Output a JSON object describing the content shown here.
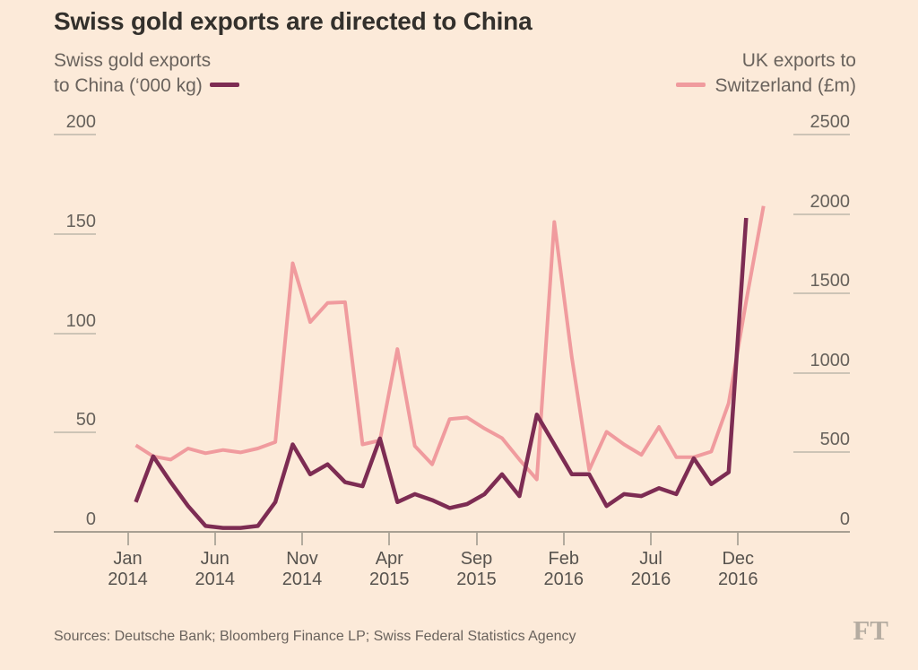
{
  "title": "Swiss gold exports are directed to China",
  "source_line": "Sources: Deutsche Bank; Bloomberg Finance LP; Swiss Federal Statistics Agency",
  "ft_logo": "FT",
  "colors": {
    "background": "#fcead9",
    "china_line": "#7d2c53",
    "uk_line": "#f09b9e",
    "title_text": "#33302c",
    "axis_text": "#66615b",
    "tick_line": "#cdc4b6",
    "baseline": "#a8a093"
  },
  "legend": {
    "left_line1": "Swiss gold exports",
    "left_line2": "to China (‘000 kg)",
    "right_line1": "UK exports to",
    "right_line2": "Switzerland (£m)"
  },
  "chart_data": {
    "type": "line",
    "title": "Swiss gold exports are directed to China",
    "x": [
      "Jan 2014",
      "Feb 2014",
      "Mar 2014",
      "Apr 2014",
      "May 2014",
      "Jun 2014",
      "Jul 2014",
      "Aug 2014",
      "Sep 2014",
      "Oct 2014",
      "Nov 2014",
      "Dec 2014",
      "Jan 2015",
      "Feb 2015",
      "Mar 2015",
      "Apr 2015",
      "May 2015",
      "Jun 2015",
      "Jul 2015",
      "Aug 2015",
      "Sep 2015",
      "Oct 2015",
      "Nov 2015",
      "Dec 2015",
      "Jan 2016",
      "Feb 2016",
      "Mar 2016",
      "Apr 2016",
      "May 2016",
      "Jun 2016",
      "Jul 2016",
      "Aug 2016",
      "Sep 2016",
      "Oct 2016",
      "Nov 2016",
      "Dec 2016",
      "Jan 2017"
    ],
    "series": [
      {
        "name": "Swiss gold exports to China ('000 kg)",
        "axis": "left",
        "color": "#7d2c53",
        "values": [
          15,
          38,
          25,
          13,
          3,
          2,
          2,
          3,
          15,
          44,
          29,
          34,
          25,
          23,
          47,
          15,
          19,
          16,
          12,
          14,
          19,
          29,
          18,
          59,
          44,
          29,
          29,
          13,
          19,
          18,
          22,
          19,
          37,
          24,
          30,
          158,
          null
        ]
      },
      {
        "name": "UK exports to Switzerland (£m)",
        "axis": "right",
        "color": "#f09b9e",
        "values": [
          545,
          475,
          455,
          525,
          495,
          515,
          500,
          525,
          565,
          1690,
          1320,
          1440,
          1445,
          550,
          575,
          1150,
          540,
          425,
          710,
          720,
          650,
          590,
          455,
          330,
          1950,
          1100,
          390,
          630,
          550,
          485,
          660,
          470,
          470,
          505,
          810,
          1450,
          2050
        ]
      }
    ],
    "left_axis": {
      "label": "Swiss gold exports to China ('000 kg)",
      "ticks": [
        0,
        50,
        100,
        150,
        200
      ],
      "ylim": [
        0,
        200
      ]
    },
    "right_axis": {
      "label": "UK exports to Switzerland (£m)",
      "ticks": [
        0,
        500,
        1000,
        1500,
        2000,
        2500
      ],
      "ylim": [
        0,
        2500
      ]
    },
    "x_ticks": [
      {
        "index": 0,
        "line1": "Jan",
        "line2": "2014"
      },
      {
        "index": 5,
        "line1": "Jun",
        "line2": "2014"
      },
      {
        "index": 10,
        "line1": "Nov",
        "line2": "2014"
      },
      {
        "index": 15,
        "line1": "Apr",
        "line2": "2015"
      },
      {
        "index": 20,
        "line1": "Sep",
        "line2": "2015"
      },
      {
        "index": 25,
        "line1": "Feb",
        "line2": "2016"
      },
      {
        "index": 30,
        "line1": "Jul",
        "line2": "2016"
      },
      {
        "index": 35,
        "line1": "Dec",
        "line2": "2016"
      }
    ],
    "grid": false,
    "legend_position": "top"
  }
}
